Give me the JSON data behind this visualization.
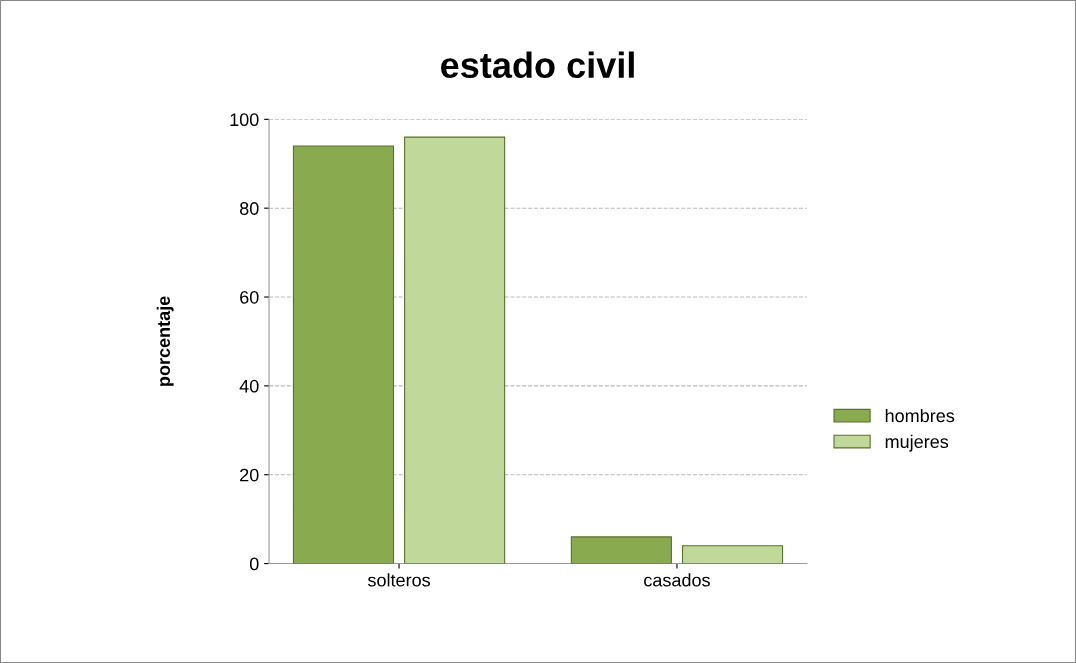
{
  "chart_data": {
    "type": "bar",
    "title": "estado civil",
    "ylabel": "porcentaje",
    "categories": [
      "solteros",
      "casados"
    ],
    "series": [
      {
        "name": "hombres",
        "color": "#8aaa50",
        "values": [
          94,
          6
        ]
      },
      {
        "name": "mujeres",
        "color": "#c0d89a",
        "values": [
          96,
          4
        ]
      }
    ],
    "ylim": [
      0,
      100
    ],
    "yticks": [
      0,
      20,
      40,
      60,
      80,
      100
    ],
    "grid": "y",
    "legend": "right"
  }
}
